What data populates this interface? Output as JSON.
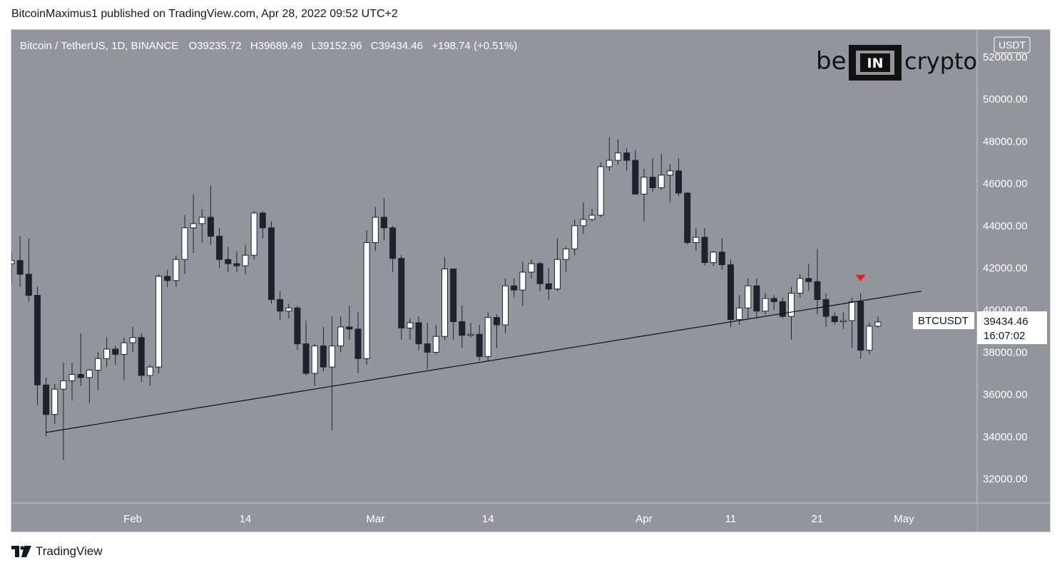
{
  "header": {
    "publisher_line": "BitcoinMaximus1 published on TradingView.com, Apr 28, 2022 09:52 UTC+2"
  },
  "footer": {
    "brand": "TradingView"
  },
  "watermark": {
    "left": "be",
    "middle": "IN",
    "right": "crypto"
  },
  "symbol_bar": {
    "name": "Bitcoin / TetherUS, 1D, BINANCE",
    "o_label": "O",
    "o_value": "39235.72",
    "h_label": "H",
    "h_value": "39689.49",
    "l_label": "L",
    "l_value": "39152.96",
    "c_label": "C",
    "c_value": "39434.46",
    "change": "+198.74 (+0.51%)"
  },
  "price_axis": {
    "currency": "USDT",
    "ticks": [
      "52000.00",
      "50000.00",
      "48000.00",
      "46000.00",
      "44000.00",
      "42000.00",
      "40000.00",
      "38000.00",
      "36000.00",
      "34000.00",
      "32000.00"
    ]
  },
  "price_tag": {
    "symbol": "BTCUSDT",
    "price": "39434.46",
    "countdown": "16:07:02"
  },
  "time_axis": {
    "labels": [
      "Feb",
      "14",
      "Mar",
      "14",
      "Apr",
      "11",
      "21",
      "May"
    ]
  },
  "colors": {
    "background": "#93959c",
    "candle_up": "#ffffff",
    "candle_down": "#1e222d",
    "marker": "#e81e1e"
  },
  "chart_data": {
    "type": "candlestick",
    "title": "Bitcoin / TetherUS, 1D, BINANCE",
    "ylim": [
      30800,
      53000
    ],
    "x_ticks": [
      {
        "label": "Feb",
        "date": "2022-02-01"
      },
      {
        "label": "14",
        "date": "2022-02-14"
      },
      {
        "label": "Mar",
        "date": "2022-03-01"
      },
      {
        "label": "14",
        "date": "2022-03-14"
      },
      {
        "label": "Apr",
        "date": "2022-04-01"
      },
      {
        "label": "11",
        "date": "2022-04-11"
      },
      {
        "label": "21",
        "date": "2022-04-21"
      },
      {
        "label": "May",
        "date": "2022-05-01"
      }
    ],
    "candles": [
      {
        "date": "2022-01-18",
        "o": 42200,
        "h": 42700,
        "l": 41300,
        "c": 42350
      },
      {
        "date": "2022-01-19",
        "o": 42350,
        "h": 43500,
        "l": 41100,
        "c": 41700
      },
      {
        "date": "2022-01-20",
        "o": 41700,
        "h": 43400,
        "l": 40400,
        "c": 40700
      },
      {
        "date": "2022-01-21",
        "o": 40700,
        "h": 41100,
        "l": 35500,
        "c": 36450
      },
      {
        "date": "2022-01-22",
        "o": 36450,
        "h": 36800,
        "l": 34000,
        "c": 35050
      },
      {
        "date": "2022-01-23",
        "o": 35050,
        "h": 36500,
        "l": 34600,
        "c": 36250
      },
      {
        "date": "2022-01-24",
        "o": 36250,
        "h": 37500,
        "l": 32900,
        "c": 36650
      },
      {
        "date": "2022-01-25",
        "o": 36650,
        "h": 37500,
        "l": 35700,
        "c": 36950
      },
      {
        "date": "2022-01-26",
        "o": 36950,
        "h": 38900,
        "l": 36400,
        "c": 36800
      },
      {
        "date": "2022-01-27",
        "o": 36800,
        "h": 37200,
        "l": 35600,
        "c": 37150
      },
      {
        "date": "2022-01-28",
        "o": 37150,
        "h": 38000,
        "l": 36200,
        "c": 37700
      },
      {
        "date": "2022-01-29",
        "o": 37700,
        "h": 38700,
        "l": 37300,
        "c": 38150
      },
      {
        "date": "2022-01-30",
        "o": 38150,
        "h": 38300,
        "l": 37400,
        "c": 37900
      },
      {
        "date": "2022-01-31",
        "o": 37900,
        "h": 38700,
        "l": 36700,
        "c": 38450
      },
      {
        "date": "2022-02-01",
        "o": 38450,
        "h": 39200,
        "l": 38000,
        "c": 38700
      },
      {
        "date": "2022-02-02",
        "o": 38700,
        "h": 38900,
        "l": 36600,
        "c": 36900
      },
      {
        "date": "2022-02-03",
        "o": 36900,
        "h": 37400,
        "l": 36400,
        "c": 37300
      },
      {
        "date": "2022-02-04",
        "o": 37300,
        "h": 41700,
        "l": 37000,
        "c": 41600
      },
      {
        "date": "2022-02-05",
        "o": 41600,
        "h": 41900,
        "l": 41100,
        "c": 41400
      },
      {
        "date": "2022-02-06",
        "o": 41400,
        "h": 42600,
        "l": 41100,
        "c": 42400
      },
      {
        "date": "2022-02-07",
        "o": 42400,
        "h": 44500,
        "l": 41700,
        "c": 43900
      },
      {
        "date": "2022-02-08",
        "o": 43900,
        "h": 45500,
        "l": 42700,
        "c": 44100
      },
      {
        "date": "2022-02-09",
        "o": 44100,
        "h": 44800,
        "l": 43200,
        "c": 44400
      },
      {
        "date": "2022-02-10",
        "o": 44400,
        "h": 45900,
        "l": 43100,
        "c": 43500
      },
      {
        "date": "2022-02-11",
        "o": 43500,
        "h": 43900,
        "l": 42000,
        "c": 42400
      },
      {
        "date": "2022-02-12",
        "o": 42400,
        "h": 43000,
        "l": 41800,
        "c": 42200
      },
      {
        "date": "2022-02-13",
        "o": 42200,
        "h": 42800,
        "l": 41800,
        "c": 42100
      },
      {
        "date": "2022-02-14",
        "o": 42100,
        "h": 43100,
        "l": 41700,
        "c": 42600
      },
      {
        "date": "2022-02-15",
        "o": 42600,
        "h": 44700,
        "l": 42400,
        "c": 44600
      },
      {
        "date": "2022-02-16",
        "o": 44600,
        "h": 44700,
        "l": 43400,
        "c": 43900
      },
      {
        "date": "2022-02-17",
        "o": 43900,
        "h": 44200,
        "l": 40300,
        "c": 40500
      },
      {
        "date": "2022-02-18",
        "o": 40500,
        "h": 40900,
        "l": 39500,
        "c": 39950
      },
      {
        "date": "2022-02-19",
        "o": 39950,
        "h": 40300,
        "l": 39600,
        "c": 40100
      },
      {
        "date": "2022-02-20",
        "o": 40100,
        "h": 40200,
        "l": 38100,
        "c": 38400
      },
      {
        "date": "2022-02-21",
        "o": 38400,
        "h": 39500,
        "l": 36900,
        "c": 37000
      },
      {
        "date": "2022-02-22",
        "o": 37000,
        "h": 38400,
        "l": 36400,
        "c": 38300
      },
      {
        "date": "2022-02-23",
        "o": 38300,
        "h": 39200,
        "l": 37100,
        "c": 37300
      },
      {
        "date": "2022-02-24",
        "o": 37300,
        "h": 39700,
        "l": 34300,
        "c": 38300
      },
      {
        "date": "2022-02-25",
        "o": 38300,
        "h": 39700,
        "l": 38000,
        "c": 39200
      },
      {
        "date": "2022-02-26",
        "o": 39200,
        "h": 40200,
        "l": 38600,
        "c": 39100
      },
      {
        "date": "2022-02-27",
        "o": 39100,
        "h": 39900,
        "l": 37000,
        "c": 37700
      },
      {
        "date": "2022-02-28",
        "o": 37700,
        "h": 43800,
        "l": 37400,
        "c": 43200
      },
      {
        "date": "2022-03-01",
        "o": 43200,
        "h": 44900,
        "l": 42800,
        "c": 44400
      },
      {
        "date": "2022-03-02",
        "o": 44400,
        "h": 45300,
        "l": 43300,
        "c": 43900
      },
      {
        "date": "2022-03-03",
        "o": 43900,
        "h": 44000,
        "l": 41800,
        "c": 42450
      },
      {
        "date": "2022-03-04",
        "o": 42450,
        "h": 42600,
        "l": 38600,
        "c": 39150
      },
      {
        "date": "2022-03-05",
        "o": 39150,
        "h": 39600,
        "l": 38600,
        "c": 39400
      },
      {
        "date": "2022-03-06",
        "o": 39400,
        "h": 39700,
        "l": 38100,
        "c": 38400
      },
      {
        "date": "2022-03-07",
        "o": 38400,
        "h": 39400,
        "l": 37200,
        "c": 38000
      },
      {
        "date": "2022-03-08",
        "o": 38000,
        "h": 39300,
        "l": 37900,
        "c": 38750
      },
      {
        "date": "2022-03-09",
        "o": 38750,
        "h": 42500,
        "l": 38600,
        "c": 41950
      },
      {
        "date": "2022-03-10",
        "o": 41950,
        "h": 41950,
        "l": 38600,
        "c": 39450
      },
      {
        "date": "2022-03-11",
        "o": 39450,
        "h": 40200,
        "l": 38200,
        "c": 38800
      },
      {
        "date": "2022-03-12",
        "o": 38800,
        "h": 39400,
        "l": 38700,
        "c": 38850
      },
      {
        "date": "2022-03-13",
        "o": 38850,
        "h": 39300,
        "l": 37600,
        "c": 37800
      },
      {
        "date": "2022-03-14",
        "o": 37800,
        "h": 39900,
        "l": 37600,
        "c": 39650
      },
      {
        "date": "2022-03-15",
        "o": 39650,
        "h": 39800,
        "l": 38200,
        "c": 39300
      },
      {
        "date": "2022-03-16",
        "o": 39300,
        "h": 41500,
        "l": 38900,
        "c": 41150
      },
      {
        "date": "2022-03-17",
        "o": 41150,
        "h": 41500,
        "l": 40600,
        "c": 40950
      },
      {
        "date": "2022-03-18",
        "o": 40950,
        "h": 42300,
        "l": 40200,
        "c": 41800
      },
      {
        "date": "2022-03-19",
        "o": 41800,
        "h": 42400,
        "l": 41500,
        "c": 42200
      },
      {
        "date": "2022-03-20",
        "o": 42200,
        "h": 42300,
        "l": 40900,
        "c": 41250
      },
      {
        "date": "2022-03-21",
        "o": 41250,
        "h": 42000,
        "l": 40500,
        "c": 41000
      },
      {
        "date": "2022-03-22",
        "o": 41000,
        "h": 43400,
        "l": 40900,
        "c": 42400
      },
      {
        "date": "2022-03-23",
        "o": 42400,
        "h": 43000,
        "l": 41800,
        "c": 42900
      },
      {
        "date": "2022-03-24",
        "o": 42900,
        "h": 44300,
        "l": 42600,
        "c": 44000
      },
      {
        "date": "2022-03-25",
        "o": 44000,
        "h": 45100,
        "l": 43600,
        "c": 44300
      },
      {
        "date": "2022-03-26",
        "o": 44300,
        "h": 44800,
        "l": 44200,
        "c": 44500
      },
      {
        "date": "2022-03-27",
        "o": 44500,
        "h": 47000,
        "l": 44400,
        "c": 46800
      },
      {
        "date": "2022-03-28",
        "o": 46800,
        "h": 48200,
        "l": 46600,
        "c": 47100
      },
      {
        "date": "2022-03-29",
        "o": 47100,
        "h": 48100,
        "l": 46900,
        "c": 47450
      },
      {
        "date": "2022-03-30",
        "o": 47450,
        "h": 47700,
        "l": 46600,
        "c": 47100
      },
      {
        "date": "2022-03-31",
        "o": 47100,
        "h": 47600,
        "l": 45500,
        "c": 45500
      },
      {
        "date": "2022-04-01",
        "o": 45500,
        "h": 46700,
        "l": 44200,
        "c": 46300
      },
      {
        "date": "2022-04-02",
        "o": 46300,
        "h": 47200,
        "l": 45600,
        "c": 45800
      },
      {
        "date": "2022-04-03",
        "o": 45800,
        "h": 47400,
        "l": 45700,
        "c": 46400
      },
      {
        "date": "2022-04-04",
        "o": 46400,
        "h": 46900,
        "l": 45100,
        "c": 46600
      },
      {
        "date": "2022-04-05",
        "o": 46600,
        "h": 47200,
        "l": 45400,
        "c": 45550
      },
      {
        "date": "2022-04-06",
        "o": 45550,
        "h": 45600,
        "l": 43100,
        "c": 43200
      },
      {
        "date": "2022-04-07",
        "o": 43200,
        "h": 43900,
        "l": 42800,
        "c": 43450
      },
      {
        "date": "2022-04-08",
        "o": 43450,
        "h": 43900,
        "l": 42100,
        "c": 42250
      },
      {
        "date": "2022-04-09",
        "o": 42250,
        "h": 42800,
        "l": 42100,
        "c": 42750
      },
      {
        "date": "2022-04-10",
        "o": 42750,
        "h": 43400,
        "l": 41900,
        "c": 42150
      },
      {
        "date": "2022-04-11",
        "o": 42150,
        "h": 42400,
        "l": 39200,
        "c": 39550
      },
      {
        "date": "2022-04-12",
        "o": 39550,
        "h": 40700,
        "l": 39300,
        "c": 40100
      },
      {
        "date": "2022-04-13",
        "o": 40100,
        "h": 41500,
        "l": 39600,
        "c": 41150
      },
      {
        "date": "2022-04-14",
        "o": 41150,
        "h": 41500,
        "l": 39600,
        "c": 39950
      },
      {
        "date": "2022-04-15",
        "o": 39950,
        "h": 40800,
        "l": 39800,
        "c": 40550
      },
      {
        "date": "2022-04-16",
        "o": 40550,
        "h": 40700,
        "l": 40000,
        "c": 40400
      },
      {
        "date": "2022-04-17",
        "o": 40400,
        "h": 40600,
        "l": 39600,
        "c": 39700
      },
      {
        "date": "2022-04-18",
        "o": 39700,
        "h": 41100,
        "l": 38600,
        "c": 40800
      },
      {
        "date": "2022-04-19",
        "o": 40800,
        "h": 41700,
        "l": 40600,
        "c": 41500
      },
      {
        "date": "2022-04-20",
        "o": 41500,
        "h": 42200,
        "l": 40900,
        "c": 41350
      },
      {
        "date": "2022-04-21",
        "o": 41350,
        "h": 42900,
        "l": 39800,
        "c": 40500
      },
      {
        "date": "2022-04-22",
        "o": 40500,
        "h": 40800,
        "l": 39200,
        "c": 39700
      },
      {
        "date": "2022-04-23",
        "o": 39700,
        "h": 39900,
        "l": 39300,
        "c": 39450
      },
      {
        "date": "2022-04-24",
        "o": 39450,
        "h": 39900,
        "l": 39100,
        "c": 39500
      },
      {
        "date": "2022-04-25",
        "o": 39500,
        "h": 40600,
        "l": 38200,
        "c": 40400
      },
      {
        "date": "2022-04-26",
        "o": 40400,
        "h": 40800,
        "l": 37700,
        "c": 38100
      },
      {
        "date": "2022-04-27",
        "o": 38100,
        "h": 39400,
        "l": 37900,
        "c": 39235.72
      },
      {
        "date": "2022-04-28",
        "o": 39235.72,
        "h": 39689.49,
        "l": 39152.96,
        "c": 39434.46
      }
    ],
    "trendline": {
      "from": {
        "date": "2022-01-22",
        "price": 34200
      },
      "to": {
        "date": "2022-05-03",
        "price": 40900
      }
    },
    "marker": {
      "date": "2022-04-26",
      "price": 41500,
      "shape": "down-triangle"
    }
  }
}
